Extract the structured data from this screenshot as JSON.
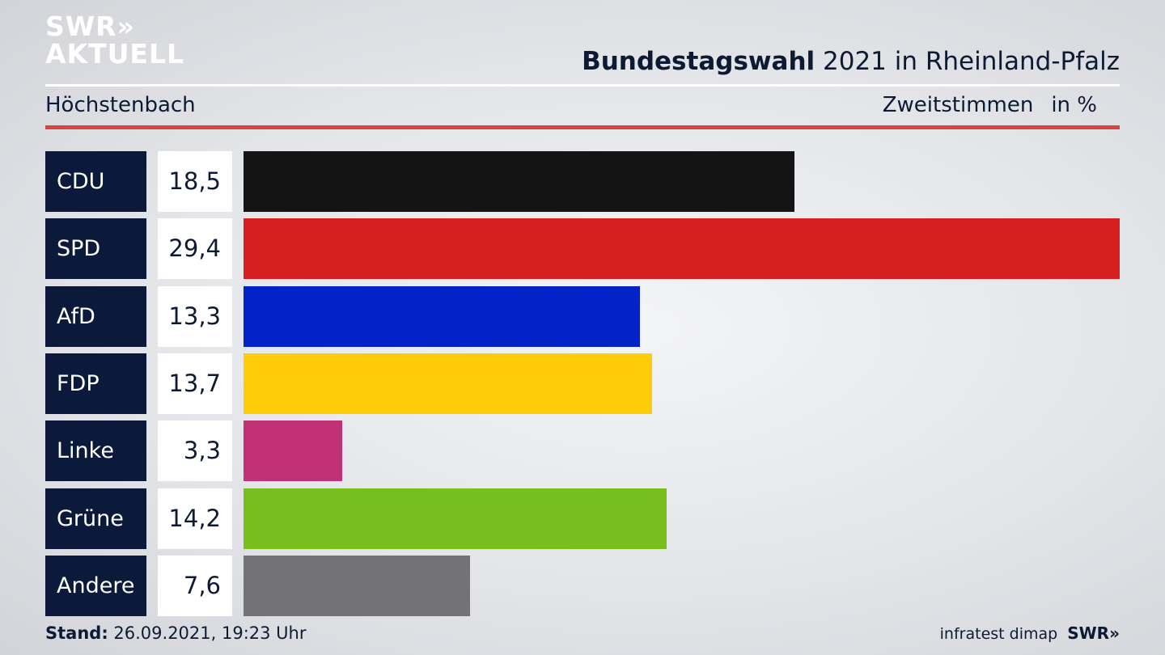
{
  "header": {
    "logo_line1": "SWR»",
    "logo_line2": "AKTUELL",
    "title_bold": "Bundestagswahl",
    "title_rest": " 2021 in Rheinland-Pfalz",
    "subtitle": "Höchstenbach",
    "measure": "Zweitstimmen",
    "unit": "in %"
  },
  "footer": {
    "stand_label": "Stand:",
    "stand_value": " 26.09.2021, 19:23 Uhr",
    "source": "infratest dimap",
    "brand": "SWR»"
  },
  "chart_data": {
    "type": "bar",
    "orientation": "horizontal",
    "categories": [
      "CDU",
      "SPD",
      "AfD",
      "FDP",
      "Linke",
      "Grüne",
      "Andere"
    ],
    "values": [
      18.5,
      29.4,
      13.3,
      13.7,
      3.3,
      14.2,
      7.6
    ],
    "value_labels": [
      "18,5",
      "29,4",
      "13,3",
      "13,7",
      "3,3",
      "14,2",
      "7,6"
    ],
    "colors": [
      "#141414",
      "#d62020",
      "#0323c8",
      "#ffcc0a",
      "#bf3074",
      "#78be1d",
      "#737375"
    ],
    "xlim": [
      0,
      29.4
    ]
  }
}
